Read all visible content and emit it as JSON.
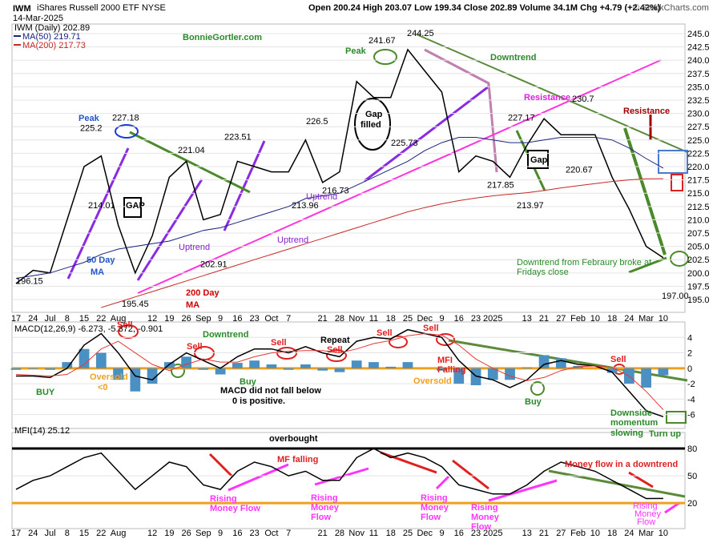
{
  "chart_data": [
    {
      "type": "line",
      "title": "IWM",
      "subtitle": "iShares Russell 2000 ETF NYSE",
      "date": "14-Mar-2025",
      "stats": "Open 200.24 High 203.07 Low 199.34 Close 202.89 Volume 34.1M Chg +4.79 (+2.42%)",
      "source": "© StockCharts.com",
      "categories": [
        "17",
        "24",
        "Jul",
        "8",
        "15",
        "22",
        "Aug",
        null,
        "12",
        "19",
        "26",
        "Sep",
        "9",
        "16",
        "23",
        "Oct",
        "7",
        null,
        "21",
        "28",
        "Nov",
        "11",
        "18",
        "25",
        "Dec",
        "9",
        "16",
        "23",
        "2025",
        null,
        "13",
        "21",
        "27",
        "Feb",
        "10",
        "18",
        "24",
        "Mar",
        "10"
      ],
      "series": [
        {
          "name": "IWM (Daily) 202.89",
          "color": "#000000",
          "values": [
            198,
            200.5,
            200,
            210,
            220,
            222,
            209,
            200,
            207,
            218,
            221,
            210,
            211,
            221,
            220,
            219,
            219,
            225,
            217,
            219,
            236,
            233,
            233,
            242,
            238,
            234,
            219,
            222,
            221,
            218,
            224,
            229,
            226,
            226,
            226,
            218,
            212,
            205,
            202.89
          ]
        },
        {
          "name": "MA(50) 219.71",
          "color": "#1a237e",
          "values": [
            199,
            199.5,
            200,
            201,
            202,
            203.5,
            204.5,
            205,
            205.5,
            206,
            207,
            208,
            208.5,
            209.5,
            210.5,
            211.5,
            212.5,
            214,
            214.5,
            215,
            216.5,
            218,
            219.5,
            221,
            223,
            224.5,
            225.5,
            225.5,
            225,
            224.5,
            224.5,
            225,
            225.5,
            225.5,
            225.5,
            225,
            223.5,
            221.5,
            219.71
          ]
        },
        {
          "name": "MA(200) 217.73",
          "color": "#c62828",
          "values": [
            null,
            null,
            null,
            null,
            null,
            193.5,
            194.5,
            195.5,
            196.5,
            197.5,
            198.5,
            199.5,
            200.5,
            201.5,
            202.5,
            203.5,
            204.5,
            205.5,
            206.5,
            207.5,
            208.5,
            209.5,
            210.5,
            211.5,
            212.3,
            213,
            213.6,
            214.1,
            214.5,
            214.8,
            215.1,
            215.5,
            216,
            216.4,
            216.8,
            217.2,
            217.5,
            217.7,
            217.73
          ]
        }
      ],
      "price_labels": [
        196.15,
        225.2,
        227.18,
        214.01,
        195.45,
        221.04,
        223.51,
        202.91,
        226.5,
        213.96,
        216.73,
        241.67,
        225.73,
        244.25,
        227.17,
        217.85,
        213.97,
        230.7,
        220.67,
        {
          "value": 197,
          "label": "197.00"
        }
      ],
      "ylim": [
        192.6,
        246.8
      ],
      "yticks": [
        {
          "value": 195,
          "label": "195.0"
        },
        {
          "value": 197.5,
          "label": "197.5"
        },
        {
          "value": 200,
          "label": "200.0"
        },
        {
          "value": 202.5,
          "label": "202.5"
        },
        {
          "value": 205,
          "label": "205.0"
        },
        {
          "value": 207.5,
          "label": "207.5"
        },
        {
          "value": 210,
          "label": "210.0"
        },
        {
          "value": 212.5,
          "label": "212.5"
        },
        {
          "value": 215,
          "label": "215.0"
        },
        {
          "value": 217.5,
          "label": "217.5"
        },
        {
          "value": 220,
          "label": "220.0"
        },
        {
          "value": 222.5,
          "label": "222.5"
        },
        {
          "value": 225,
          "label": "225.0"
        },
        {
          "value": 227.5,
          "label": "227.5"
        },
        {
          "value": 230,
          "label": "230.0"
        },
        {
          "value": 232.5,
          "label": "232.5"
        },
        {
          "value": 235,
          "label": "235.0"
        },
        {
          "value": 237.5,
          "label": "237.5"
        },
        {
          "value": 240,
          "label": "240.0"
        },
        {
          "value": 242.5,
          "label": "242.5"
        },
        {
          "value": 245,
          "label": "245.0"
        }
      ],
      "grid": true,
      "annotations": [
        "BonnieGortler.com",
        "Peak",
        "Peak",
        "Gap",
        "filled",
        "GAP",
        "Gap",
        "Downtrend",
        "Resistance",
        "Resistance",
        "Uptrend",
        "Uptrend",
        "Uptrend",
        "50 Day",
        "MA",
        "200 Day",
        "MA",
        "Downtrend from Febraury broke at",
        "Fridays close"
      ]
    },
    {
      "type": "macd",
      "title": "MACD(12,26,9) -6.273, -5.372, -0.901",
      "series": [
        {
          "color": "#000000",
          "values": [
            -1,
            -1,
            -1.2,
            0,
            3,
            4.5,
            2,
            -1,
            -1.5,
            0.5,
            2,
            1,
            0,
            1.5,
            2.5,
            2.5,
            2,
            2.8,
            2,
            1.5,
            3.5,
            4,
            3.8,
            5,
            4.5,
            4,
            1,
            -1,
            -1.5,
            -2.5,
            -1.5,
            0.5,
            1,
            0.5,
            0.3,
            -0.5,
            -3,
            -5.5,
            -6.273
          ]
        },
        {
          "color": "#e53935",
          "values": [
            -0.8,
            -0.9,
            -1,
            -0.8,
            0.5,
            2.5,
            3.5,
            2,
            0.5,
            -0.3,
            0.5,
            1.2,
            0.8,
            0.8,
            1.5,
            2,
            2.2,
            2.3,
            2.3,
            2,
            2.5,
            3.2,
            3.6,
            4.2,
            4.5,
            4.3,
            3,
            1.2,
            0,
            -1,
            -1.6,
            -1.2,
            -0.3,
            0.2,
            0.3,
            0.1,
            -1,
            -3,
            -5.372
          ]
        }
      ],
      "histogram": {
        "color": "#4a90c2",
        "values": [
          -0.2,
          -0.1,
          -0.2,
          0.8,
          2.5,
          2,
          -1.5,
          -3,
          -2,
          0.8,
          1.5,
          -0.2,
          -0.8,
          0.7,
          1,
          0.5,
          -0.2,
          0.5,
          -0.3,
          -0.5,
          1,
          0.8,
          0.2,
          0.8,
          0,
          -0.3,
          -2,
          -2.2,
          -1.5,
          -1.5,
          0.1,
          1.7,
          1.3,
          0.3,
          0,
          -0.6,
          -2,
          -2.5,
          -0.901
        ]
      },
      "hlines": [
        {
          "value": 0,
          "color": "#f0a020"
        }
      ],
      "ylim": [
        -7.8,
        6
      ],
      "yticks": [
        4,
        2,
        0,
        -2,
        -4,
        -6
      ],
      "grid": true,
      "annotations": [
        "Sell",
        "Sell",
        "Sell",
        "Repeat",
        "Sell",
        "Sell",
        "Sell",
        "Sell",
        "Downtrend",
        "Oversold",
        "<0",
        "BUY",
        "Buy",
        "Buy",
        "MACD did not fall below",
        "0 is positive.",
        "MFI",
        "Falling",
        "Oversold",
        "Downside",
        "momentum",
        "slowing",
        "Turn up"
      ]
    },
    {
      "type": "line",
      "title": "MFI(14) 25.12",
      "categories": [
        "17",
        "24",
        "Jul",
        "8",
        "15",
        "22",
        "Aug",
        null,
        "12",
        "19",
        "26",
        "Sep",
        "9",
        "16",
        "23",
        "Oct",
        "7",
        null,
        "21",
        "28",
        "Nov",
        "11",
        "18",
        "25",
        "Dec",
        "9",
        "16",
        "23",
        "2025",
        null,
        "13",
        "21",
        "27",
        "Feb",
        "10",
        "18",
        "24",
        "Mar",
        "10"
      ],
      "series": [
        {
          "color": "#000000",
          "values": [
            35,
            45,
            50,
            60,
            70,
            75,
            55,
            35,
            50,
            65,
            60,
            40,
            35,
            55,
            65,
            60,
            50,
            55,
            45,
            45,
            70,
            80,
            70,
            75,
            70,
            60,
            40,
            35,
            30,
            30,
            40,
            55,
            65,
            60,
            55,
            45,
            35,
            25,
            25.12
          ]
        }
      ],
      "hlines": [
        {
          "value": 80,
          "color": "#000000"
        },
        {
          "value": 20,
          "color": "#f0a020"
        }
      ],
      "ylim": [
        -8,
        97.6
      ],
      "yticks": [
        80,
        50,
        20
      ],
      "grid": true,
      "annotations": [
        "overbought",
        "MF falling",
        "Rising",
        "Money Flow",
        "Rising",
        "Money",
        "Flow",
        "Rising",
        "Money",
        "Flow",
        "Rising",
        "Money",
        "Flow",
        "Money flow in a downtrend",
        "Rising",
        "Money",
        "Flow"
      ]
    }
  ]
}
